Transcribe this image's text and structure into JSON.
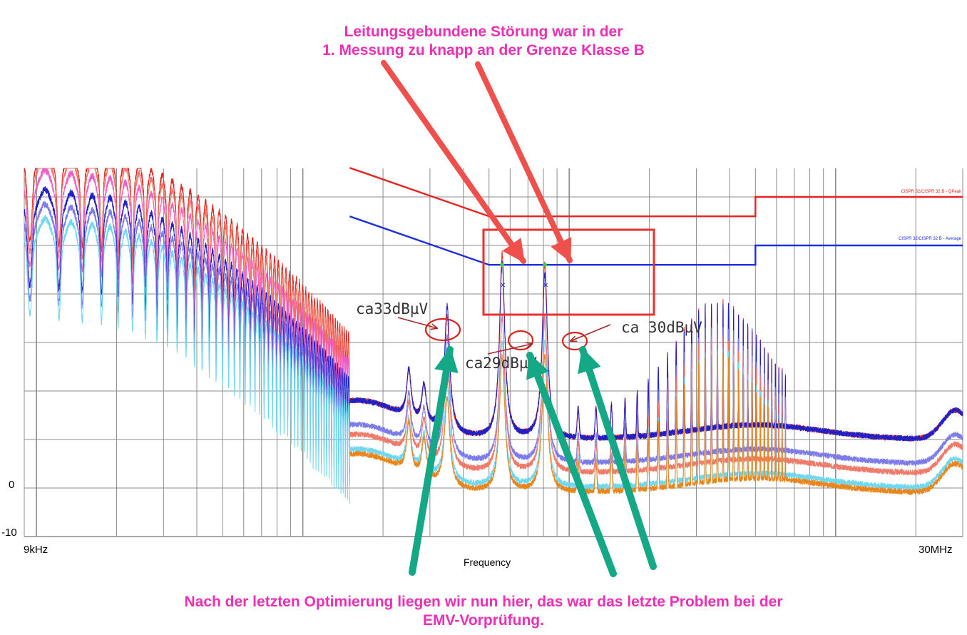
{
  "header": {
    "line1": "Leitungsgebundene Störung war in der",
    "line2": "1. Messung zu knapp an der Grenze Klasse B"
  },
  "footer": {
    "line1": "Nach der letzten Optimierung liegen wir nun hier, das war das letzte Problem bei der",
    "line2": "EMV-Vorprüfung."
  },
  "colors": {
    "caption": "#ee2fb4",
    "red_arrow": "#f0504c",
    "green_arrow": "#14a886",
    "annotation": "#a8262a",
    "limit_qp": "#e8231f",
    "limit_avg": "#1c2ee0",
    "grid": "#8c8c8c"
  },
  "chart_data": {
    "type": "line",
    "x_scale": "log",
    "xlim_hz": [
      9000,
      30000000
    ],
    "y_ticks_labelled": [
      "0",
      "-10"
    ],
    "x_tick_labels": [
      "9kHz",
      "30MHz"
    ],
    "xlabel": "Frequency",
    "grid": true,
    "legend": [
      {
        "label": "CISPR 32/CISPR 32 B - QPeak",
        "color": "#e8231f"
      },
      {
        "label": "CISPR 32/CISPR 32 B - Average",
        "color": "#1c2ee0"
      }
    ],
    "limits": {
      "qpeak": {
        "x_hz": [
          150000,
          500000,
          5000000,
          5000000,
          30000000
        ],
        "y": [
          66,
          56,
          56,
          60,
          60
        ]
      },
      "average": {
        "x_hz": [
          150000,
          500000,
          5000000,
          5000000,
          30000000
        ],
        "y": [
          56,
          46,
          46,
          50,
          50
        ]
      }
    },
    "peaks_hz": [
      348000,
      560000,
      810000
    ],
    "annotations": [
      {
        "text": "ca33dBµV",
        "x_hz": 348000,
        "y": 33
      },
      {
        "text": "ca29dBµV",
        "x_hz": 560000,
        "y": 29
      },
      {
        "text": "ca 30dBµV",
        "x_hz": 810000,
        "y": 30
      }
    ]
  }
}
